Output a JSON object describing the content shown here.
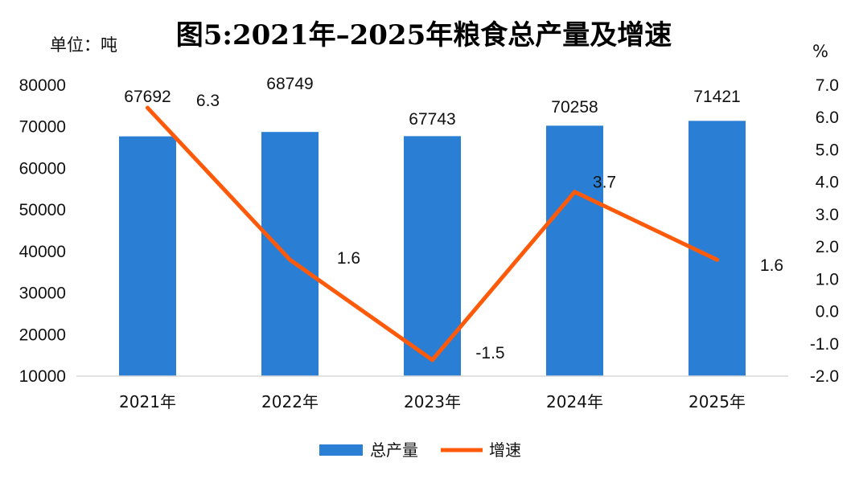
{
  "chart_data": {
    "type": "bar",
    "title": "图5:2021年–2025年粮食总产量及增速",
    "left_unit": "单位：吨",
    "right_unit": "%",
    "categories": [
      "2021年",
      "2022年",
      "2023年",
      "2024年",
      "2025年"
    ],
    "series": [
      {
        "name": "总产量",
        "type": "bar",
        "axis": "left",
        "color": "#2a7fd4",
        "values": [
          67692,
          68749,
          67743,
          70258,
          71421
        ]
      },
      {
        "name": "增速",
        "type": "line",
        "axis": "right",
        "color": "#ff5a0a",
        "values": [
          6.3,
          1.6,
          -1.5,
          3.7,
          1.6
        ]
      }
    ],
    "y_left": {
      "min": 10000,
      "max": 80000,
      "step": 10000,
      "ticks": [
        "10000",
        "20000",
        "30000",
        "40000",
        "50000",
        "60000",
        "70000",
        "80000"
      ]
    },
    "y_right": {
      "min": -2.0,
      "max": 7.0,
      "step": 1.0,
      "ticks": [
        "-2.0",
        "-1.0",
        "0.0",
        "1.0",
        "2.0",
        "3.0",
        "4.0",
        "5.0",
        "6.0",
        "7.0"
      ]
    },
    "bar_labels": [
      "67692",
      "68749",
      "67743",
      "70258",
      "71421"
    ],
    "line_labels": [
      "6.3",
      "1.6",
      "-1.5",
      "3.7",
      "1.6"
    ],
    "grid": false,
    "legend": "bottom",
    "legend_items": [
      {
        "label": "总产量",
        "icon": "bar-swatch"
      },
      {
        "label": "增速",
        "icon": "line-swatch"
      }
    ]
  }
}
